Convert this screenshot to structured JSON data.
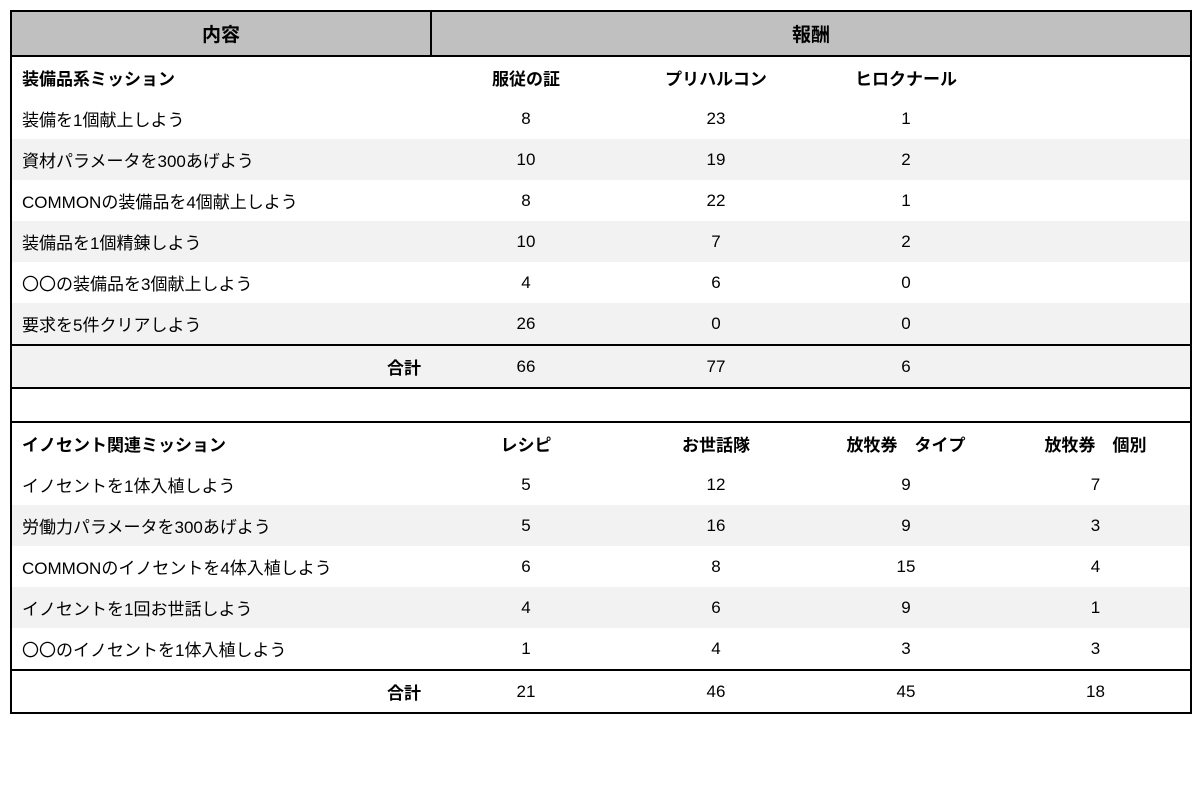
{
  "colors": {
    "headerBg": "#c0c0c0",
    "stripeA": "#ffffff",
    "stripeB": "#f2f2f2",
    "border": "#000000",
    "text": "#000000"
  },
  "headers": {
    "content": "内容",
    "reward": "報酬"
  },
  "section1": {
    "title": "装備品系ミッション",
    "rewardLabels": [
      "服従の証",
      "プリハルコン",
      "ヒロクナール",
      ""
    ],
    "rows": [
      {
        "label": "装備を1個献上しよう",
        "vals": [
          "8",
          "23",
          "1",
          ""
        ]
      },
      {
        "label": "資材パラメータを300あげよう",
        "vals": [
          "10",
          "19",
          "2",
          ""
        ]
      },
      {
        "label": "COMMONの装備品を4個献上しよう",
        "vals": [
          "8",
          "22",
          "1",
          ""
        ]
      },
      {
        "label": "装備品を1個精錬しよう",
        "vals": [
          "10",
          "7",
          "2",
          ""
        ]
      },
      {
        "label": "〇〇の装備品を3個献上しよう",
        "vals": [
          "4",
          "6",
          "0",
          ""
        ]
      },
      {
        "label": "要求を5件クリアしよう",
        "vals": [
          "26",
          "0",
          "0",
          ""
        ]
      }
    ],
    "totalLabel": "合計",
    "totals": [
      "66",
      "77",
      "6",
      ""
    ]
  },
  "section2": {
    "title": "イノセント関連ミッション",
    "rewardLabels": [
      "レシピ",
      "お世話隊",
      "放牧券　タイプ",
      "放牧券　個別"
    ],
    "rows": [
      {
        "label": "イノセントを1体入植しよう",
        "vals": [
          "5",
          "12",
          "9",
          "7"
        ]
      },
      {
        "label": "労働力パラメータを300あげよう",
        "vals": [
          "5",
          "16",
          "9",
          "3"
        ]
      },
      {
        "label": "COMMONのイノセントを4体入植しよう",
        "vals": [
          "6",
          "8",
          "15",
          "4"
        ]
      },
      {
        "label": "イノセントを1回お世話しよう",
        "vals": [
          "4",
          "6",
          "9",
          "1"
        ]
      },
      {
        "label": "〇〇のイノセントを1体入植しよう",
        "vals": [
          "1",
          "4",
          "3",
          "3"
        ]
      }
    ],
    "totalLabel": "合計",
    "totals": [
      "21",
      "46",
      "45",
      "18"
    ]
  }
}
